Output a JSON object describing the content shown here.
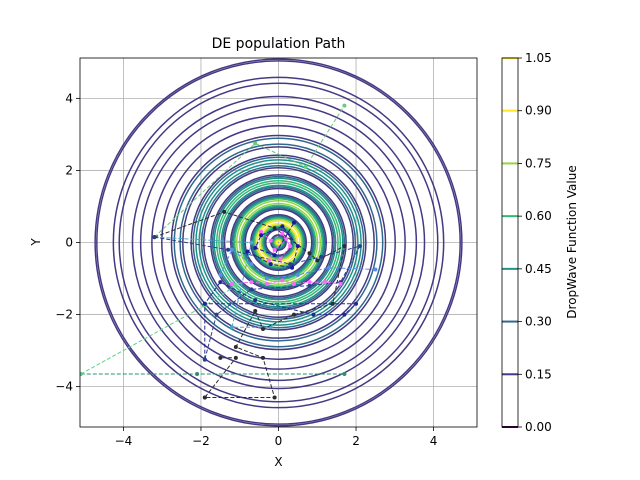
{
  "chart_data": {
    "type": "line",
    "title": "DE population Path",
    "xlabel": "X",
    "ylabel": "Y",
    "xlim": [
      -5.12,
      5.12
    ],
    "ylim": [
      -5.12,
      5.12
    ],
    "x_ticks": [
      -4,
      -2,
      0,
      2,
      4
    ],
    "y_ticks": [
      -4,
      -2,
      0,
      2,
      4
    ],
    "x_tick_labels": [
      "−4",
      "−2",
      "0",
      "2",
      "4"
    ],
    "y_tick_labels": [
      "−4",
      "−2",
      "0",
      "2",
      "4"
    ],
    "grid": true,
    "contour": {
      "function": "DropWave",
      "levels": [
        0.0,
        0.15,
        0.3,
        0.45,
        0.6,
        0.75,
        0.9,
        1.05
      ],
      "level_colors": [
        "#440154",
        "#443983",
        "#31688e",
        "#21918c",
        "#35b779",
        "#90d743",
        "#fde725"
      ]
    },
    "colorbar": {
      "label": "DropWave Function Value",
      "ticks": [
        0.0,
        0.15,
        0.3,
        0.45,
        0.6,
        0.75,
        0.9,
        1.05
      ],
      "tick_labels": [
        "0.00",
        "0.15",
        "0.30",
        "0.45",
        "0.60",
        "0.75",
        "0.90",
        "1.05"
      ]
    },
    "series": [
      {
        "color": "#2f8f6f",
        "x": [
          -5.1,
          -2.1,
          1.7
        ],
        "y": [
          -3.65,
          -3.65,
          -3.65
        ]
      },
      {
        "color": "#5fd08a",
        "x": [
          -5.1,
          -1.9,
          -1.1
        ],
        "y": [
          -3.65,
          -1.75,
          -1.2
        ]
      },
      {
        "color": "#4aa8d0",
        "x": [
          -3.2,
          -0.7,
          -1.2,
          -0.2
        ],
        "y": [
          0.15,
          0.0,
          -2.35,
          -2.35
        ]
      },
      {
        "color": "#6ac97a",
        "x": [
          -3.2,
          -0.6,
          0.7,
          1.7
        ],
        "y": [
          0.15,
          2.75,
          2.1,
          3.8
        ]
      },
      {
        "color": "#2c2c2c",
        "x": [
          -3.2,
          -1.4,
          -0.1,
          0.8,
          1.0,
          1.7,
          1.4,
          0.4,
          -0.4,
          -0.6,
          -1.1,
          -0.4,
          -0.1,
          -1.9,
          -1.9,
          -1.1,
          -1.5
        ],
        "y": [
          0.15,
          0.85,
          0.4,
          -0.3,
          -0.5,
          -0.1,
          -1.7,
          -2.0,
          -2.4,
          -1.9,
          -2.9,
          -3.2,
          -4.3,
          -4.3,
          -4.3,
          -3.2,
          -3.2
        ]
      },
      {
        "color": "#222a8f",
        "x": [
          -1.9,
          -1.9,
          2.0,
          1.7,
          0.9,
          -0.6,
          -1.5,
          -1.9
        ],
        "y": [
          -3.25,
          -1.7,
          -1.7,
          -2.0,
          -2.0,
          -1.6,
          -1.1,
          -1.7
        ]
      },
      {
        "color": "#27408b",
        "x": [
          -3.2,
          -1.3,
          0.3,
          1.1,
          2.1,
          1.6,
          0.8,
          -0.7,
          -1.6,
          -1.9
        ],
        "y": [
          0.15,
          -0.2,
          -0.6,
          -0.4,
          -0.1,
          -1.1,
          -1.2,
          -1.3,
          -2.0,
          -3.25
        ]
      },
      {
        "color": "#5b8de8",
        "x": [
          2.5,
          1.3,
          0.5,
          -0.3,
          -0.7,
          -1.2,
          -1.5
        ],
        "y": [
          -0.75,
          -0.7,
          -0.9,
          -1.0,
          -0.6,
          -0.2,
          -0.9
        ]
      },
      {
        "color": "#ff66ff",
        "x": [
          -1.2,
          -0.7,
          -0.3,
          0.1,
          0.4,
          0.8,
          1.2,
          1.6
        ],
        "y": [
          -1.15,
          -1.1,
          -1.15,
          -1.05,
          -1.15,
          -1.1,
          -1.1,
          -1.15
        ]
      },
      {
        "color": "#ff66ff",
        "x": [
          -0.45,
          -0.2,
          0.1,
          0.3,
          0.05,
          -0.25,
          -0.1,
          0.2
        ],
        "y": [
          0.3,
          0.05,
          0.25,
          -0.1,
          -0.45,
          -0.5,
          -0.2,
          0.1
        ]
      },
      {
        "color": "#1b1b9f",
        "x": [
          -0.8,
          -0.2,
          0.35,
          0.5,
          0.1,
          -0.45,
          -0.6,
          -0.1,
          0.4
        ],
        "y": [
          -0.25,
          -0.6,
          -0.7,
          -0.1,
          0.45,
          0.2,
          -0.15,
          -0.35,
          0.55
        ]
      }
    ]
  }
}
